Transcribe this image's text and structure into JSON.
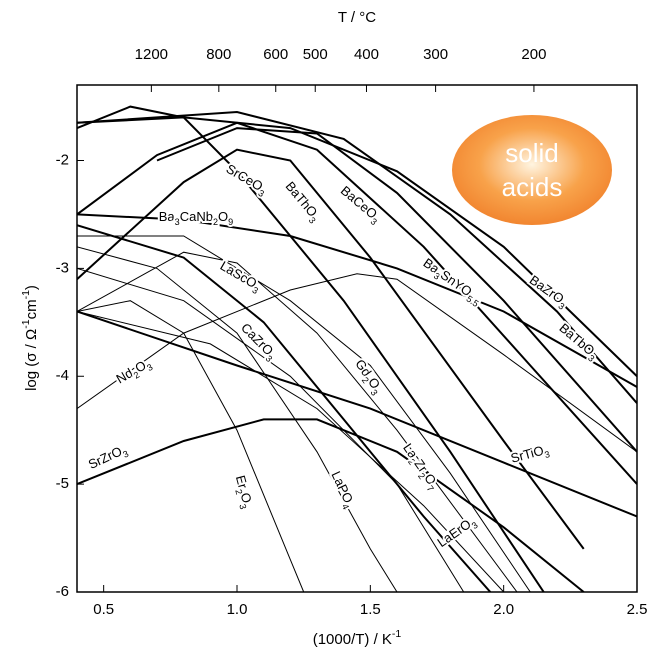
{
  "chart_data": {
    "type": "line",
    "x_label": "(1000/T) / K-1",
    "y_label": "log (σ / Ω-1cm-1)",
    "x2_label": "T / °C",
    "xlim": [
      0.4,
      2.5
    ],
    "xticks": [
      0.5,
      {
        "value": 1,
        "label": "1.0"
      },
      1.5,
      {
        "value": 2,
        "label": "2.0"
      },
      2.5
    ],
    "ylim": [
      -6,
      -1.3
    ],
    "yticks": [
      -6,
      -5,
      -4,
      -3,
      -2
    ],
    "x2ticks": [
      1200,
      800,
      600,
      500,
      400,
      300,
      200
    ],
    "annotation": [
      "solid",
      "acids"
    ],
    "annotation_color": "#f07f2a",
    "series": [
      {
        "name": "BaZrO3",
        "color": "#000000",
        "line_width": 2,
        "x": [
          0.4,
          0.8,
          1.2,
          1.6,
          2.0,
          2.5
        ],
        "values": [
          -1.65,
          -1.6,
          -1.7,
          -2.1,
          -2.8,
          -4.0
        ]
      },
      {
        "name": "BaTbO3",
        "color": "#000000",
        "line_width": 2,
        "x": [
          0.4,
          1.0,
          1.4,
          1.8,
          2.2,
          2.5
        ],
        "values": [
          -1.65,
          -1.55,
          -1.8,
          -2.5,
          -3.4,
          -4.25
        ]
      },
      {
        "name": "Ba3SnYO5.5",
        "color": "#000000",
        "line_width": 2,
        "x": [
          0.7,
          1.0,
          1.3,
          1.6,
          2.0,
          2.5
        ],
        "values": [
          -2.0,
          -1.7,
          -1.75,
          -2.3,
          -3.3,
          -4.7
        ]
      },
      {
        "name": "BaCeO3",
        "color": "#000000",
        "line_width": 2,
        "x": [
          0.4,
          0.7,
          1.0,
          1.3,
          1.7,
          2.1,
          2.5
        ],
        "values": [
          -2.5,
          -1.95,
          -1.65,
          -1.9,
          -2.8,
          -3.9,
          -5.0
        ]
      },
      {
        "name": "BaThO3",
        "color": "#000000",
        "line_width": 2,
        "x": [
          0.4,
          0.8,
          1.0,
          1.2,
          1.5,
          2.0,
          2.3
        ],
        "values": [
          -3.1,
          -2.2,
          -1.9,
          -2.0,
          -2.9,
          -4.6,
          -5.6
        ]
      },
      {
        "name": "SrCeO3",
        "color": "#000000",
        "line_width": 2,
        "x": [
          0.4,
          0.6,
          0.8,
          1.0,
          1.4,
          1.8,
          2.15
        ],
        "values": [
          -1.7,
          -1.5,
          -1.6,
          -2.1,
          -3.3,
          -4.7,
          -6.0
        ]
      },
      {
        "name": "Ba3CaNb2O9",
        "color": "#000000",
        "line_width": 2,
        "x": [
          0.4,
          0.8,
          1.2,
          1.6,
          2.0,
          2.5
        ],
        "values": [
          -2.5,
          -2.55,
          -2.7,
          -3.0,
          -3.4,
          -4.1
        ]
      },
      {
        "name": "LaScO3",
        "color": "#000000",
        "line_width": 1,
        "x": [
          0.4,
          0.8,
          1.0,
          1.3,
          1.6,
          2.05
        ],
        "values": [
          -3.4,
          -2.85,
          -2.95,
          -3.6,
          -4.5,
          -6.0
        ]
      },
      {
        "name": "CaZrO3",
        "color": "#000000",
        "line_width": 2,
        "x": [
          0.4,
          0.8,
          1.1,
          1.4,
          1.7,
          1.95
        ],
        "values": [
          -2.6,
          -2.9,
          -3.5,
          -4.4,
          -5.3,
          -6.0
        ]
      },
      {
        "name": "Gd2O3",
        "color": "#000000",
        "line_width": 1,
        "x": [
          0.4,
          0.8,
          1.2,
          1.5,
          1.8,
          2.1
        ],
        "values": [
          -2.7,
          -2.7,
          -3.3,
          -3.9,
          -4.9,
          -6.0
        ]
      },
      {
        "name": "Nd2O3",
        "color": "#000000",
        "line_width": 1,
        "x": [
          0.4,
          0.8,
          1.2,
          1.45,
          1.6,
          2.0,
          2.5
        ],
        "values": [
          -4.3,
          -3.6,
          -3.2,
          -3.05,
          -3.1,
          -3.8,
          -4.7
        ]
      },
      {
        "name": "SrTiO3",
        "color": "#000000",
        "line_width": 2,
        "x": [
          0.4,
          1.0,
          1.5,
          2.0,
          2.5
        ],
        "values": [
          -3.4,
          -3.9,
          -4.3,
          -4.8,
          -5.3
        ]
      },
      {
        "name": "SrZrO3",
        "color": "#000000",
        "line_width": 2,
        "x": [
          0.4,
          0.8,
          1.1,
          1.3,
          1.6,
          2.0,
          2.3
        ],
        "values": [
          -5.0,
          -4.6,
          -4.4,
          -4.4,
          -4.7,
          -5.4,
          -6.0
        ]
      },
      {
        "name": "Er2O3",
        "color": "#000000",
        "line_width": 1,
        "x": [
          0.4,
          0.6,
          0.8,
          1.0,
          1.2,
          1.25
        ],
        "values": [
          -3.4,
          -3.3,
          -3.6,
          -4.5,
          -5.7,
          -6.0
        ]
      },
      {
        "name": "LaPO4",
        "color": "#000000",
        "line_width": 1,
        "x": [
          0.4,
          0.7,
          1.0,
          1.3,
          1.5,
          1.6
        ],
        "values": [
          -2.8,
          -3.0,
          -3.6,
          -4.7,
          -5.6,
          -6.0
        ]
      },
      {
        "name": "La2Zr2O7",
        "color": "#000000",
        "line_width": 1,
        "x": [
          0.4,
          0.8,
          1.2,
          1.6,
          1.85
        ],
        "values": [
          -3.0,
          -3.3,
          -4.0,
          -5.0,
          -6.0
        ]
      },
      {
        "name": "LaErO3",
        "color": "#000000",
        "line_width": 1,
        "x": [
          0.4,
          0.9,
          1.3,
          1.7,
          2.0
        ],
        "values": [
          -3.4,
          -3.7,
          -4.3,
          -5.2,
          -6.0
        ]
      }
    ]
  }
}
